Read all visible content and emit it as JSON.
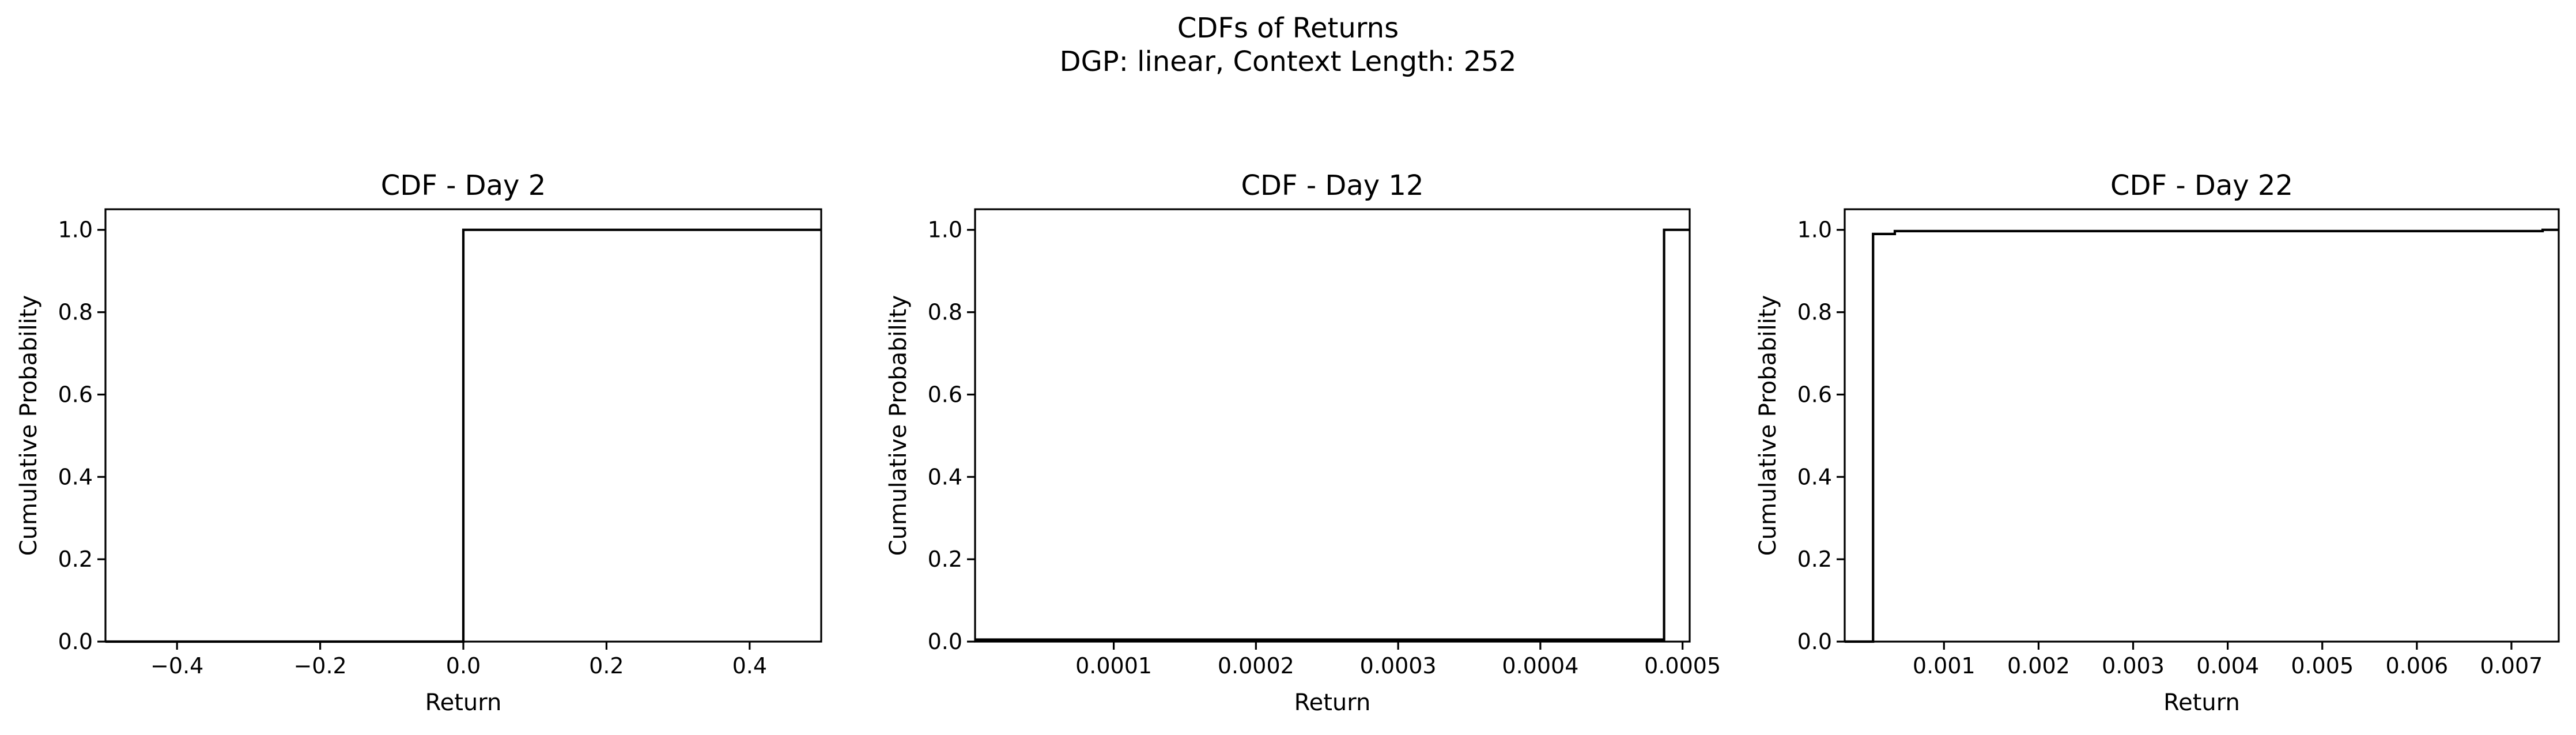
{
  "figure": {
    "title_line1": "CDFs of Returns",
    "title_line2": "DGP: linear, Context Length: 252"
  },
  "chart_data": [
    {
      "type": "line",
      "style": "step",
      "title": "CDF - Day 2",
      "xlabel": "Return",
      "ylabel": "Cumulative Probability",
      "xlim": [
        -0.5,
        0.5
      ],
      "ylim": [
        0,
        1.05
      ],
      "xticks": [
        -0.4,
        -0.2,
        0.0,
        0.2,
        0.4
      ],
      "xtick_labels": [
        "−0.4",
        "−0.2",
        "0.0",
        "0.2",
        "0.4"
      ],
      "yticks": [
        0.0,
        0.2,
        0.4,
        0.6,
        0.8,
        1.0
      ],
      "ytick_labels": [
        "0.0",
        "0.2",
        "0.4",
        "0.6",
        "0.8",
        "1.0"
      ],
      "grid": false,
      "color": "#000000",
      "x": [
        -0.5,
        0.0,
        0.0,
        0.5
      ],
      "y": [
        0.0,
        0.0,
        1.0,
        1.0
      ]
    },
    {
      "type": "line",
      "style": "step",
      "title": "CDF - Day 12",
      "xlabel": "Return",
      "ylabel": "Cumulative Probability",
      "xlim": [
        2.5e-06,
        0.000505
      ],
      "ylim": [
        0,
        1.05
      ],
      "xticks": [
        0.0001,
        0.0002,
        0.0003,
        0.0004,
        0.0005
      ],
      "xtick_labels": [
        "0.0001",
        "0.0002",
        "0.0003",
        "0.0004",
        "0.0005"
      ],
      "yticks": [
        0.0,
        0.2,
        0.4,
        0.6,
        0.8,
        1.0
      ],
      "ytick_labels": [
        "0.0",
        "0.2",
        "0.4",
        "0.6",
        "0.8",
        "1.0"
      ],
      "grid": false,
      "color": "#000000",
      "x": [
        2.5e-06,
        0.000487,
        0.000487,
        0.000505
      ],
      "y": [
        0.005,
        0.005,
        1.0,
        1.0
      ]
    },
    {
      "type": "line",
      "style": "step",
      "title": "CDF - Day 22",
      "xlabel": "Return",
      "ylabel": "Cumulative Probability",
      "xlim": [
        -5e-05,
        0.0075
      ],
      "ylim": [
        0,
        1.05
      ],
      "xticks": [
        0.001,
        0.002,
        0.003,
        0.004,
        0.005,
        0.006,
        0.007
      ],
      "xtick_labels": [
        "0.001",
        "0.002",
        "0.003",
        "0.004",
        "0.005",
        "0.006",
        "0.007"
      ],
      "yticks": [
        0.0,
        0.2,
        0.4,
        0.6,
        0.8,
        1.0
      ],
      "ytick_labels": [
        "0.0",
        "0.2",
        "0.4",
        "0.6",
        "0.8",
        "1.0"
      ],
      "grid": false,
      "color": "#000000",
      "x": [
        -5e-05,
        0.00025,
        0.00025,
        0.00048,
        0.00048,
        0.00733,
        0.00733,
        0.0075
      ],
      "y": [
        0.0,
        0.0,
        0.99,
        0.99,
        0.997,
        0.997,
        1.0,
        1.0
      ]
    }
  ]
}
